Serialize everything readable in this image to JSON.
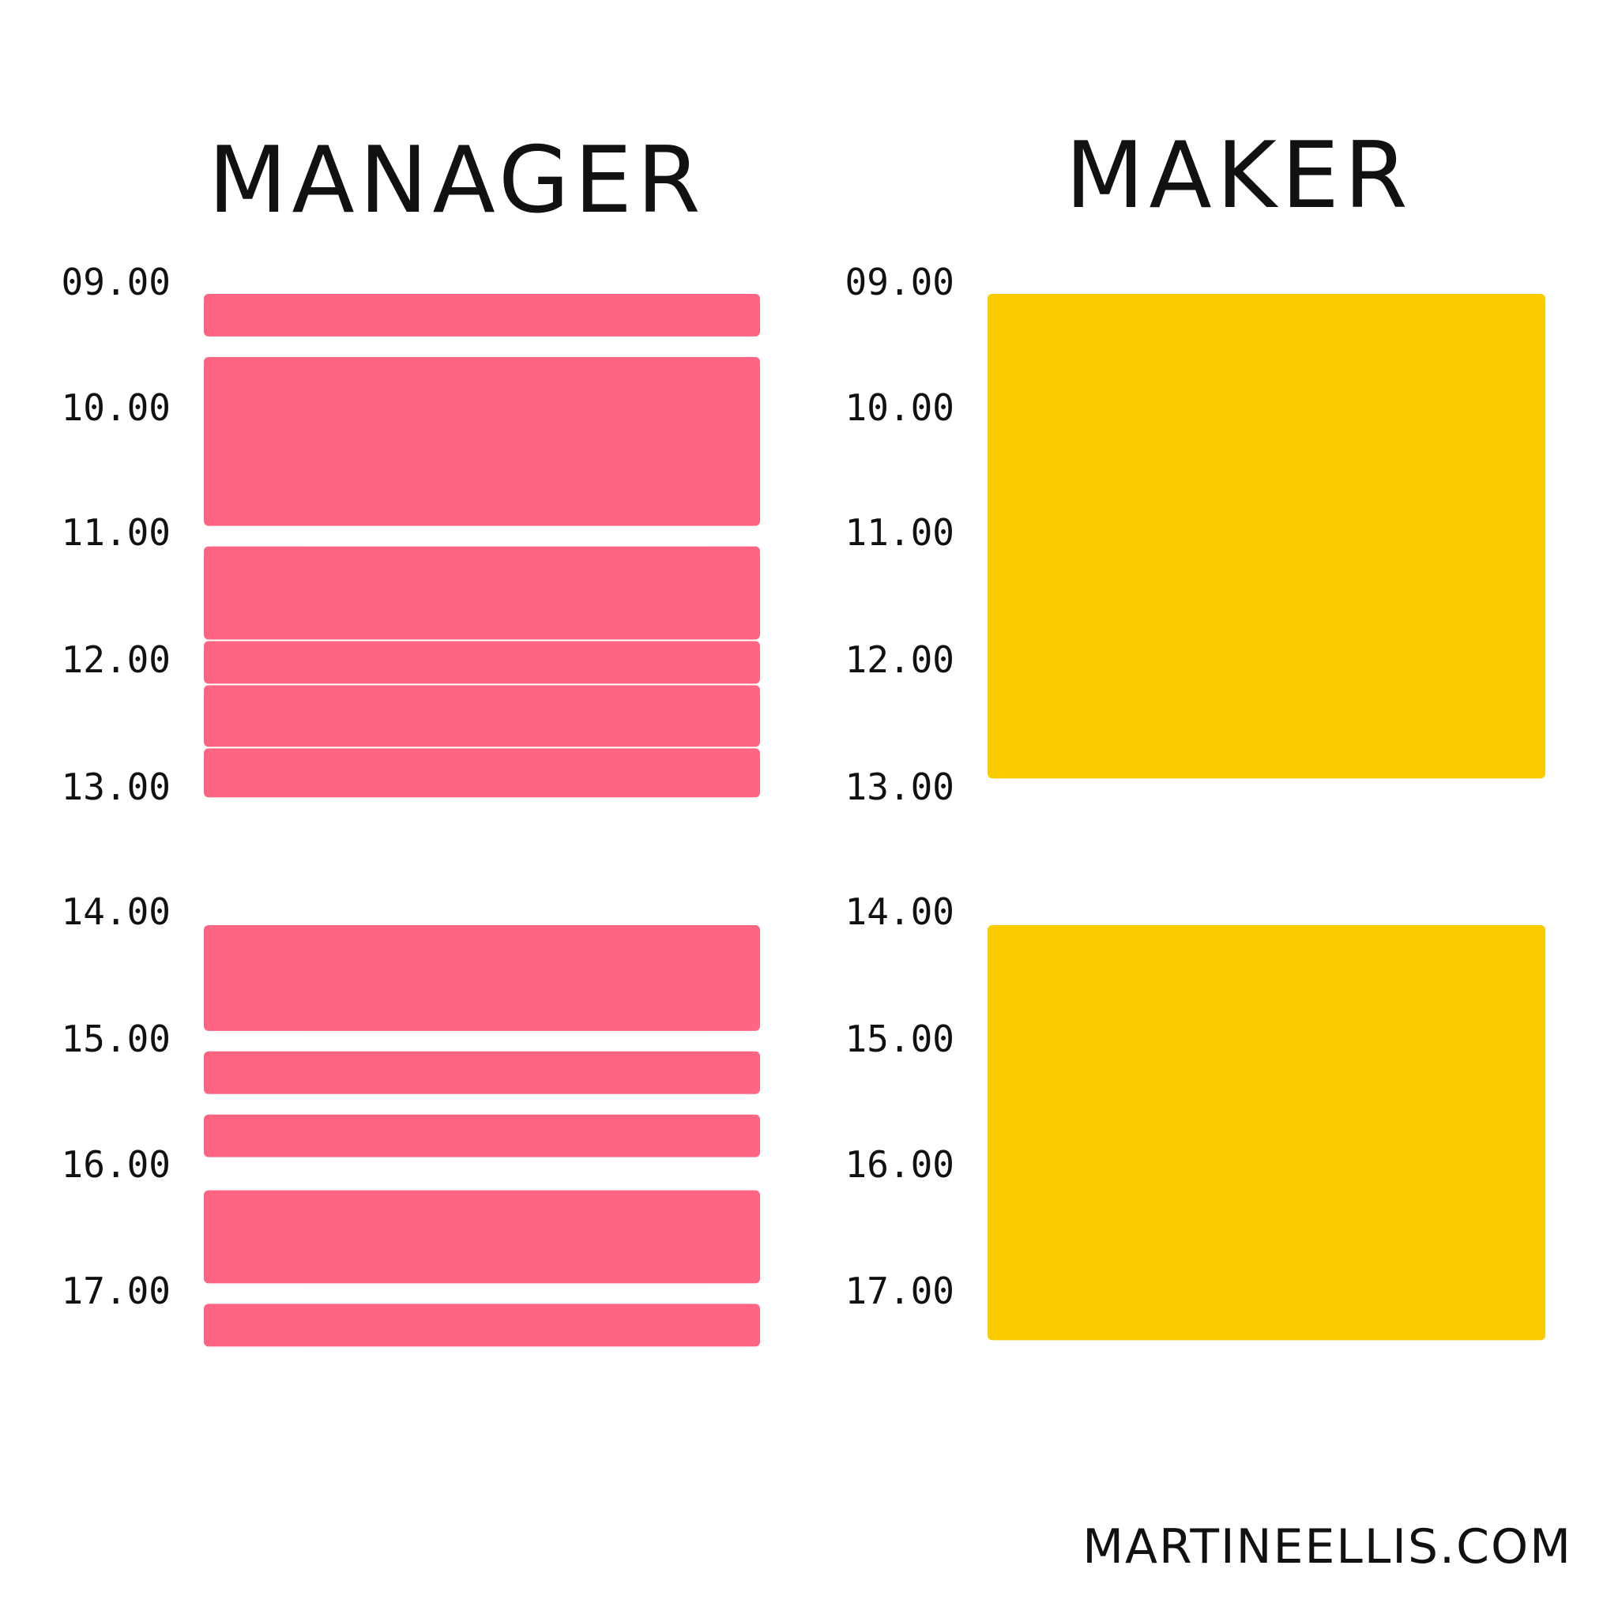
{
  "columns": [
    {
      "title": "MANAGER",
      "color": "#FF6482",
      "times": [
        "09.00",
        "10.00",
        "11.00",
        "12.00",
        "13.00",
        "14.00",
        "15.00",
        "16.00",
        "17.00"
      ],
      "blocks": [
        {
          "start": "09.00",
          "end": "09.35"
        },
        {
          "start": "09.50",
          "end": "10.85"
        },
        {
          "start": "11.00",
          "end": "11.75"
        },
        {
          "start": "11.75",
          "end": "12.10"
        },
        {
          "start": "12.10",
          "end": "12.60"
        },
        {
          "start": "12.60",
          "end": "13.00"
        },
        {
          "start": "14.00",
          "end": "14.85"
        },
        {
          "start": "15.00",
          "end": "15.35"
        },
        {
          "start": "15.50",
          "end": "15.85"
        },
        {
          "start": "16.10",
          "end": "16.85"
        },
        {
          "start": "17.00",
          "end": "17.35"
        }
      ]
    },
    {
      "title": "MAKER",
      "color": "#FACC00",
      "times": [
        "09.00",
        "10.00",
        "11.00",
        "12.00",
        "13.00",
        "14.00",
        "15.00",
        "16.00",
        "17.00"
      ],
      "blocks": [
        {
          "start": "09.00",
          "end": "12.85"
        },
        {
          "start": "14.00",
          "end": "17.30"
        }
      ]
    }
  ],
  "footer": "MARTINEELLIS.COM"
}
